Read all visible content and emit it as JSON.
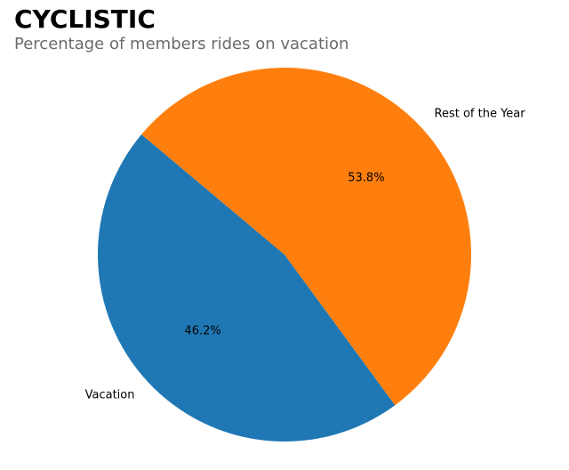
{
  "chart_data": {
    "type": "pie",
    "title": "CYCLISTIC",
    "subtitle": "Percentage of members rides on vacation",
    "slices": [
      {
        "label": "Vacation",
        "value": 46.2,
        "pct_label": "46.2%",
        "color": "#1f77b4"
      },
      {
        "label": "Rest of the Year",
        "value": 53.8,
        "pct_label": "53.8%",
        "color": "#ff7f0e"
      }
    ],
    "start_angle_deg": 140,
    "legend": "none"
  }
}
